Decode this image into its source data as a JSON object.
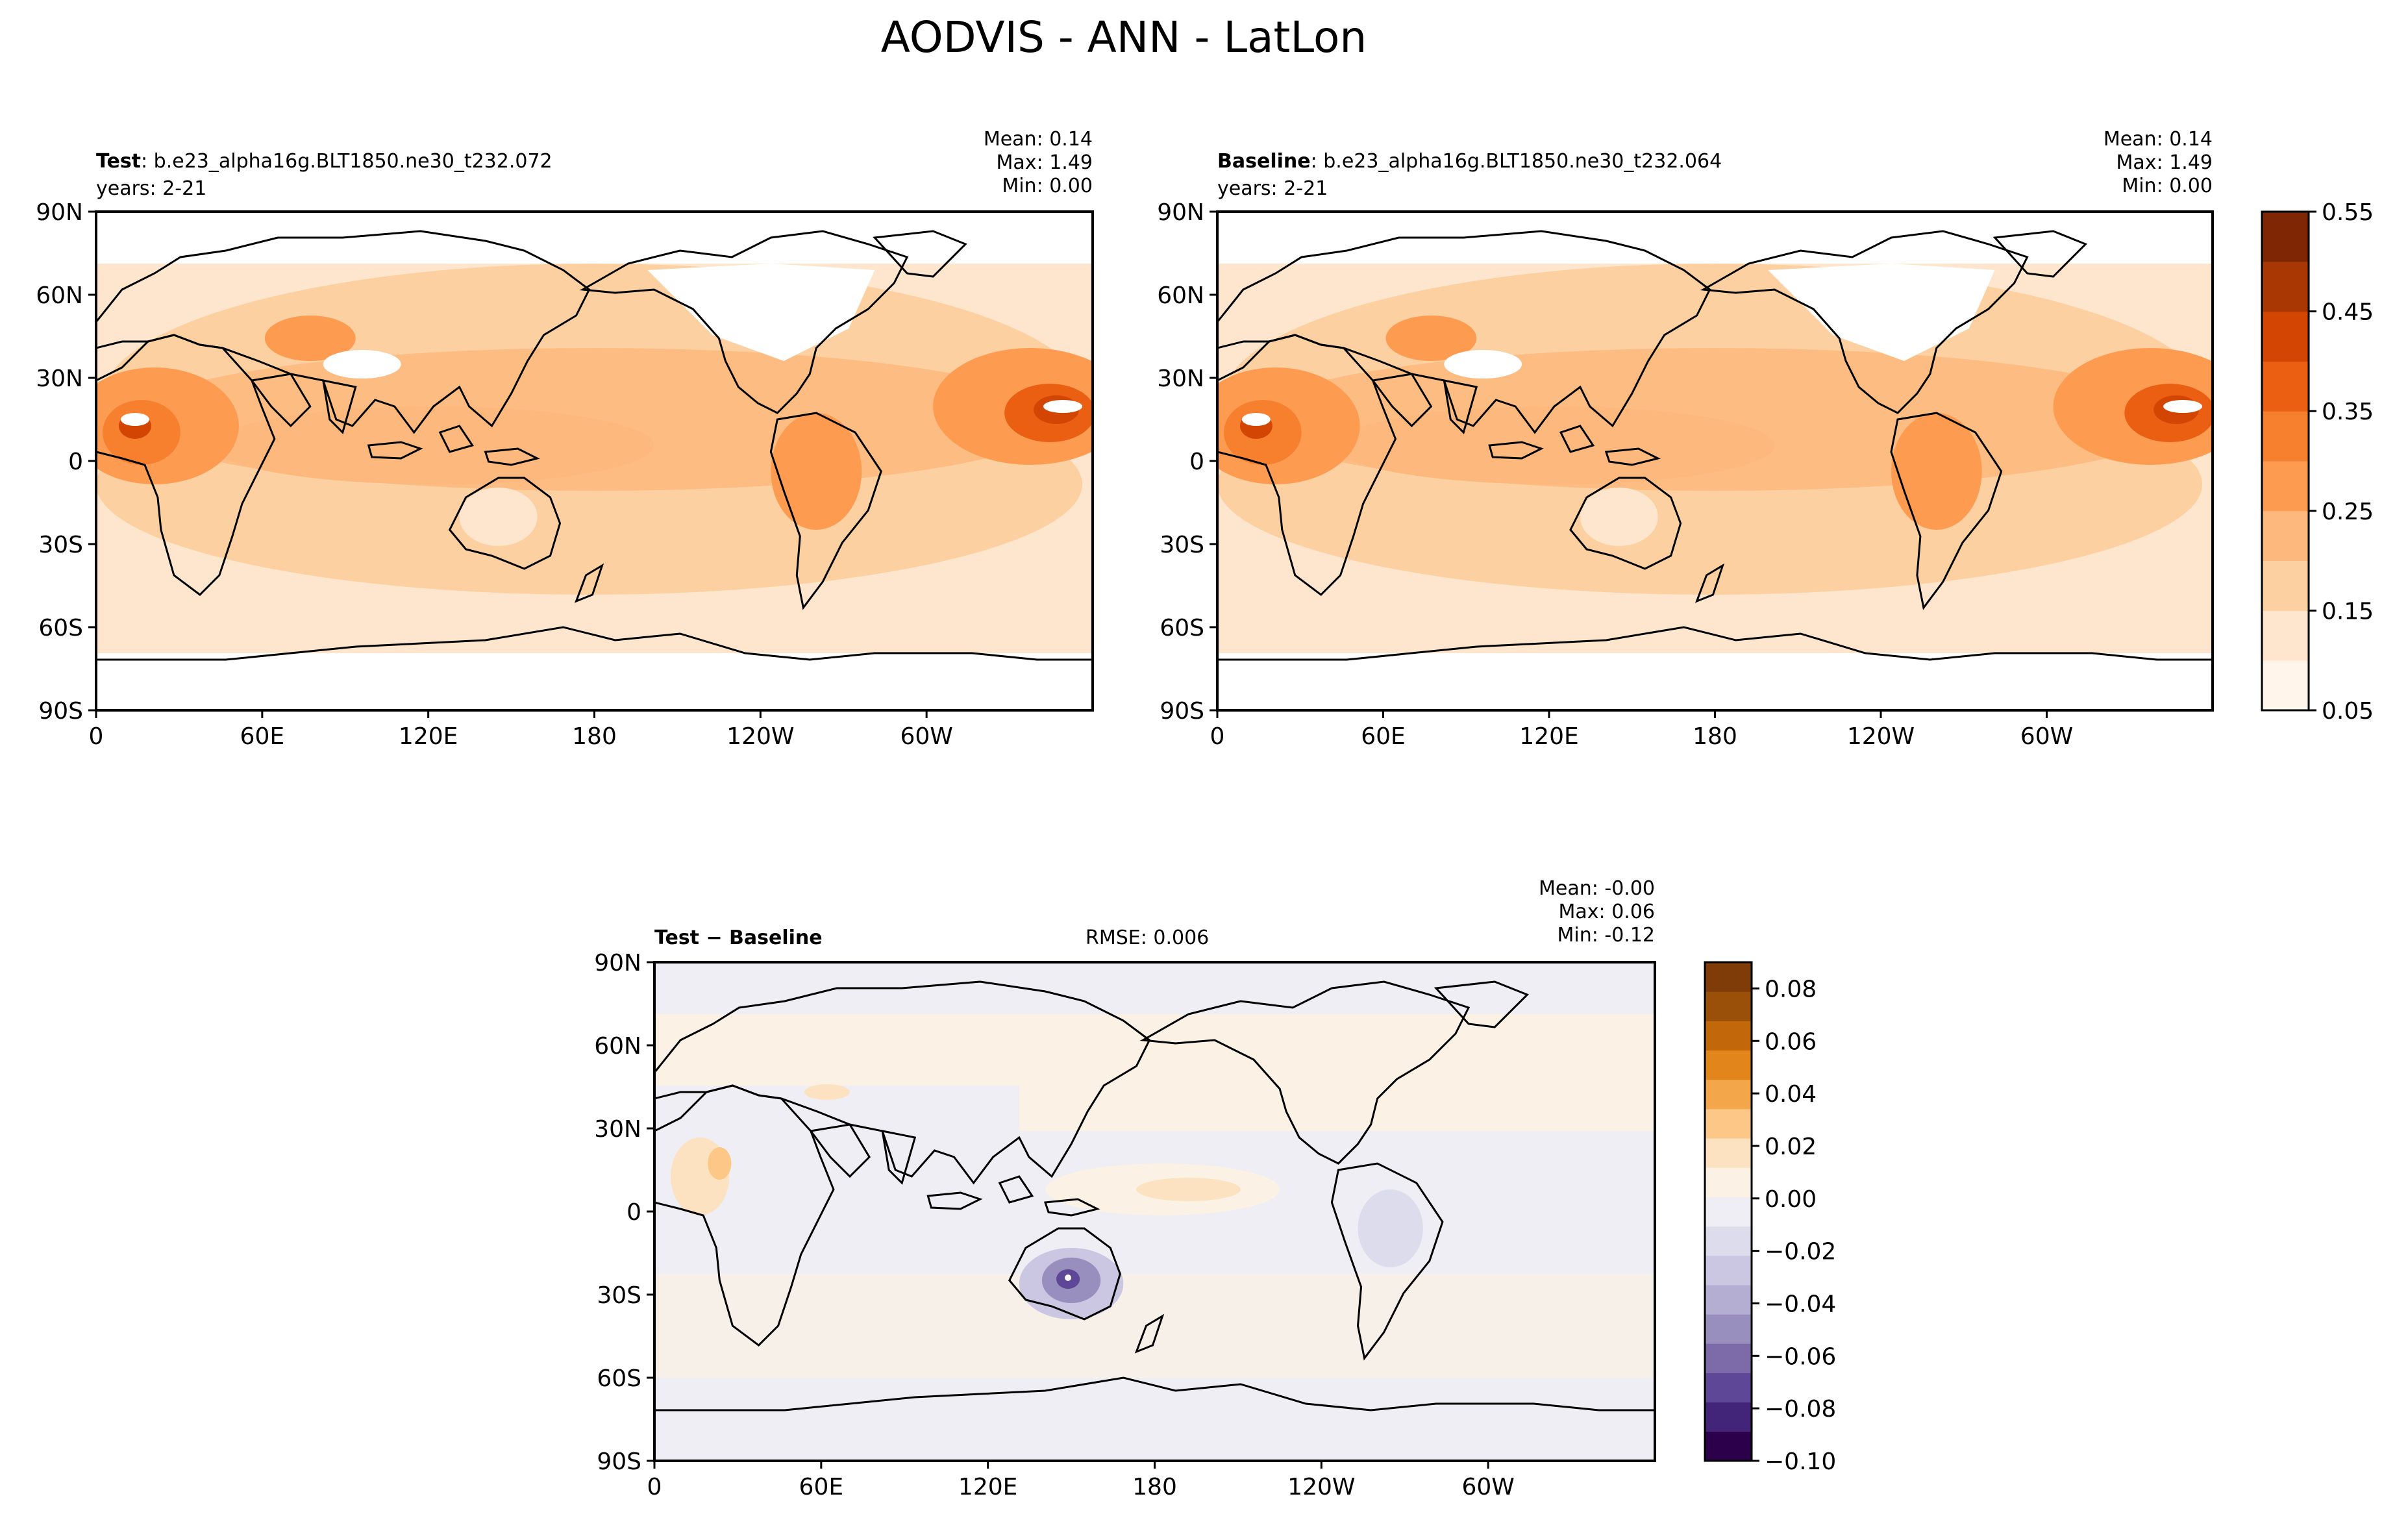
{
  "figure": {
    "suptitle": "AODVIS - ANN - LatLon"
  },
  "colors": {
    "oranges": [
      "#fff5eb",
      "#fee6ce",
      "#fdd0a2",
      "#fdb97d",
      "#fd9c51",
      "#f7802f",
      "#ea5f12",
      "#d24502",
      "#a83703",
      "#7f2704"
    ],
    "puor": [
      "#2d004b",
      "#422478",
      "#5d4796",
      "#7c6ba8",
      "#988fbe",
      "#b4aed3",
      "#cbc7e2",
      "#dddcec",
      "#eeeef4",
      "#fbf1e4",
      "#fde2c1",
      "#fdc887",
      "#f4a64a",
      "#e2861b",
      "#c2680b",
      "#9a5008",
      "#7f3b08"
    ]
  },
  "chart_data": [
    {
      "type": "contour-map",
      "panel": "test",
      "title_bold": "Test",
      "title_rest": ": b.e23_alpha16g.BLT1850.ne30_t232.072",
      "subtitle": "years: 2-21",
      "stats": [
        "Mean:  0.14",
        "Max:  1.49",
        "Min:  0.00"
      ],
      "lon_range": [
        0,
        360
      ],
      "lat_range": [
        -90,
        90
      ],
      "x_ticks": [
        "0",
        "60E",
        "120E",
        "180",
        "120W",
        "60W"
      ],
      "y_ticks": [
        "90N",
        "60N",
        "30N",
        "0",
        "30S",
        "60S",
        "90S"
      ]
    },
    {
      "type": "contour-map",
      "panel": "baseline",
      "title_bold": "Baseline",
      "title_rest": ": b.e23_alpha16g.BLT1850.ne30_t232.064",
      "subtitle": "years: 2-21",
      "stats": [
        "Mean:  0.14",
        "Max:  1.49",
        "Min:  0.00"
      ],
      "lon_range": [
        0,
        360
      ],
      "lat_range": [
        -90,
        90
      ],
      "x_ticks": [
        "0",
        "60E",
        "120E",
        "180",
        "120W",
        "60W"
      ],
      "y_ticks": [
        "90N",
        "60N",
        "30N",
        "0",
        "30S",
        "60S",
        "90S"
      ]
    },
    {
      "type": "contour-map",
      "panel": "difference",
      "title_bold": "Test − Baseline",
      "rmse": "RMSE: 0.006",
      "stats": [
        "Mean: -0.00",
        "Max:  0.06",
        "Min: -0.12"
      ],
      "lon_range": [
        0,
        360
      ],
      "lat_range": [
        -90,
        90
      ],
      "x_ticks": [
        "0",
        "60E",
        "120E",
        "180",
        "120W",
        "60W"
      ],
      "y_ticks": [
        "90N",
        "60N",
        "30N",
        "0",
        "30S",
        "60S",
        "90S"
      ]
    }
  ],
  "colorbars": [
    {
      "name": "colorbar-top",
      "range": [
        0.05,
        0.55
      ],
      "levels": 10,
      "tick_labels": [
        "0.55",
        "0.45",
        "0.35",
        "0.25",
        "0.15",
        "0.05"
      ]
    },
    {
      "name": "colorbar-diff",
      "range": [
        -0.1,
        0.09
      ],
      "levels": 17,
      "tick_labels": [
        "0.08",
        "0.06",
        "0.04",
        "0.02",
        "0.00",
        "−0.02",
        "−0.04",
        "−0.06",
        "−0.08",
        "−0.10"
      ],
      "tick_values": [
        0.08,
        0.06,
        0.04,
        0.02,
        0.0,
        -0.02,
        -0.04,
        -0.06,
        -0.08,
        -0.1
      ]
    }
  ]
}
